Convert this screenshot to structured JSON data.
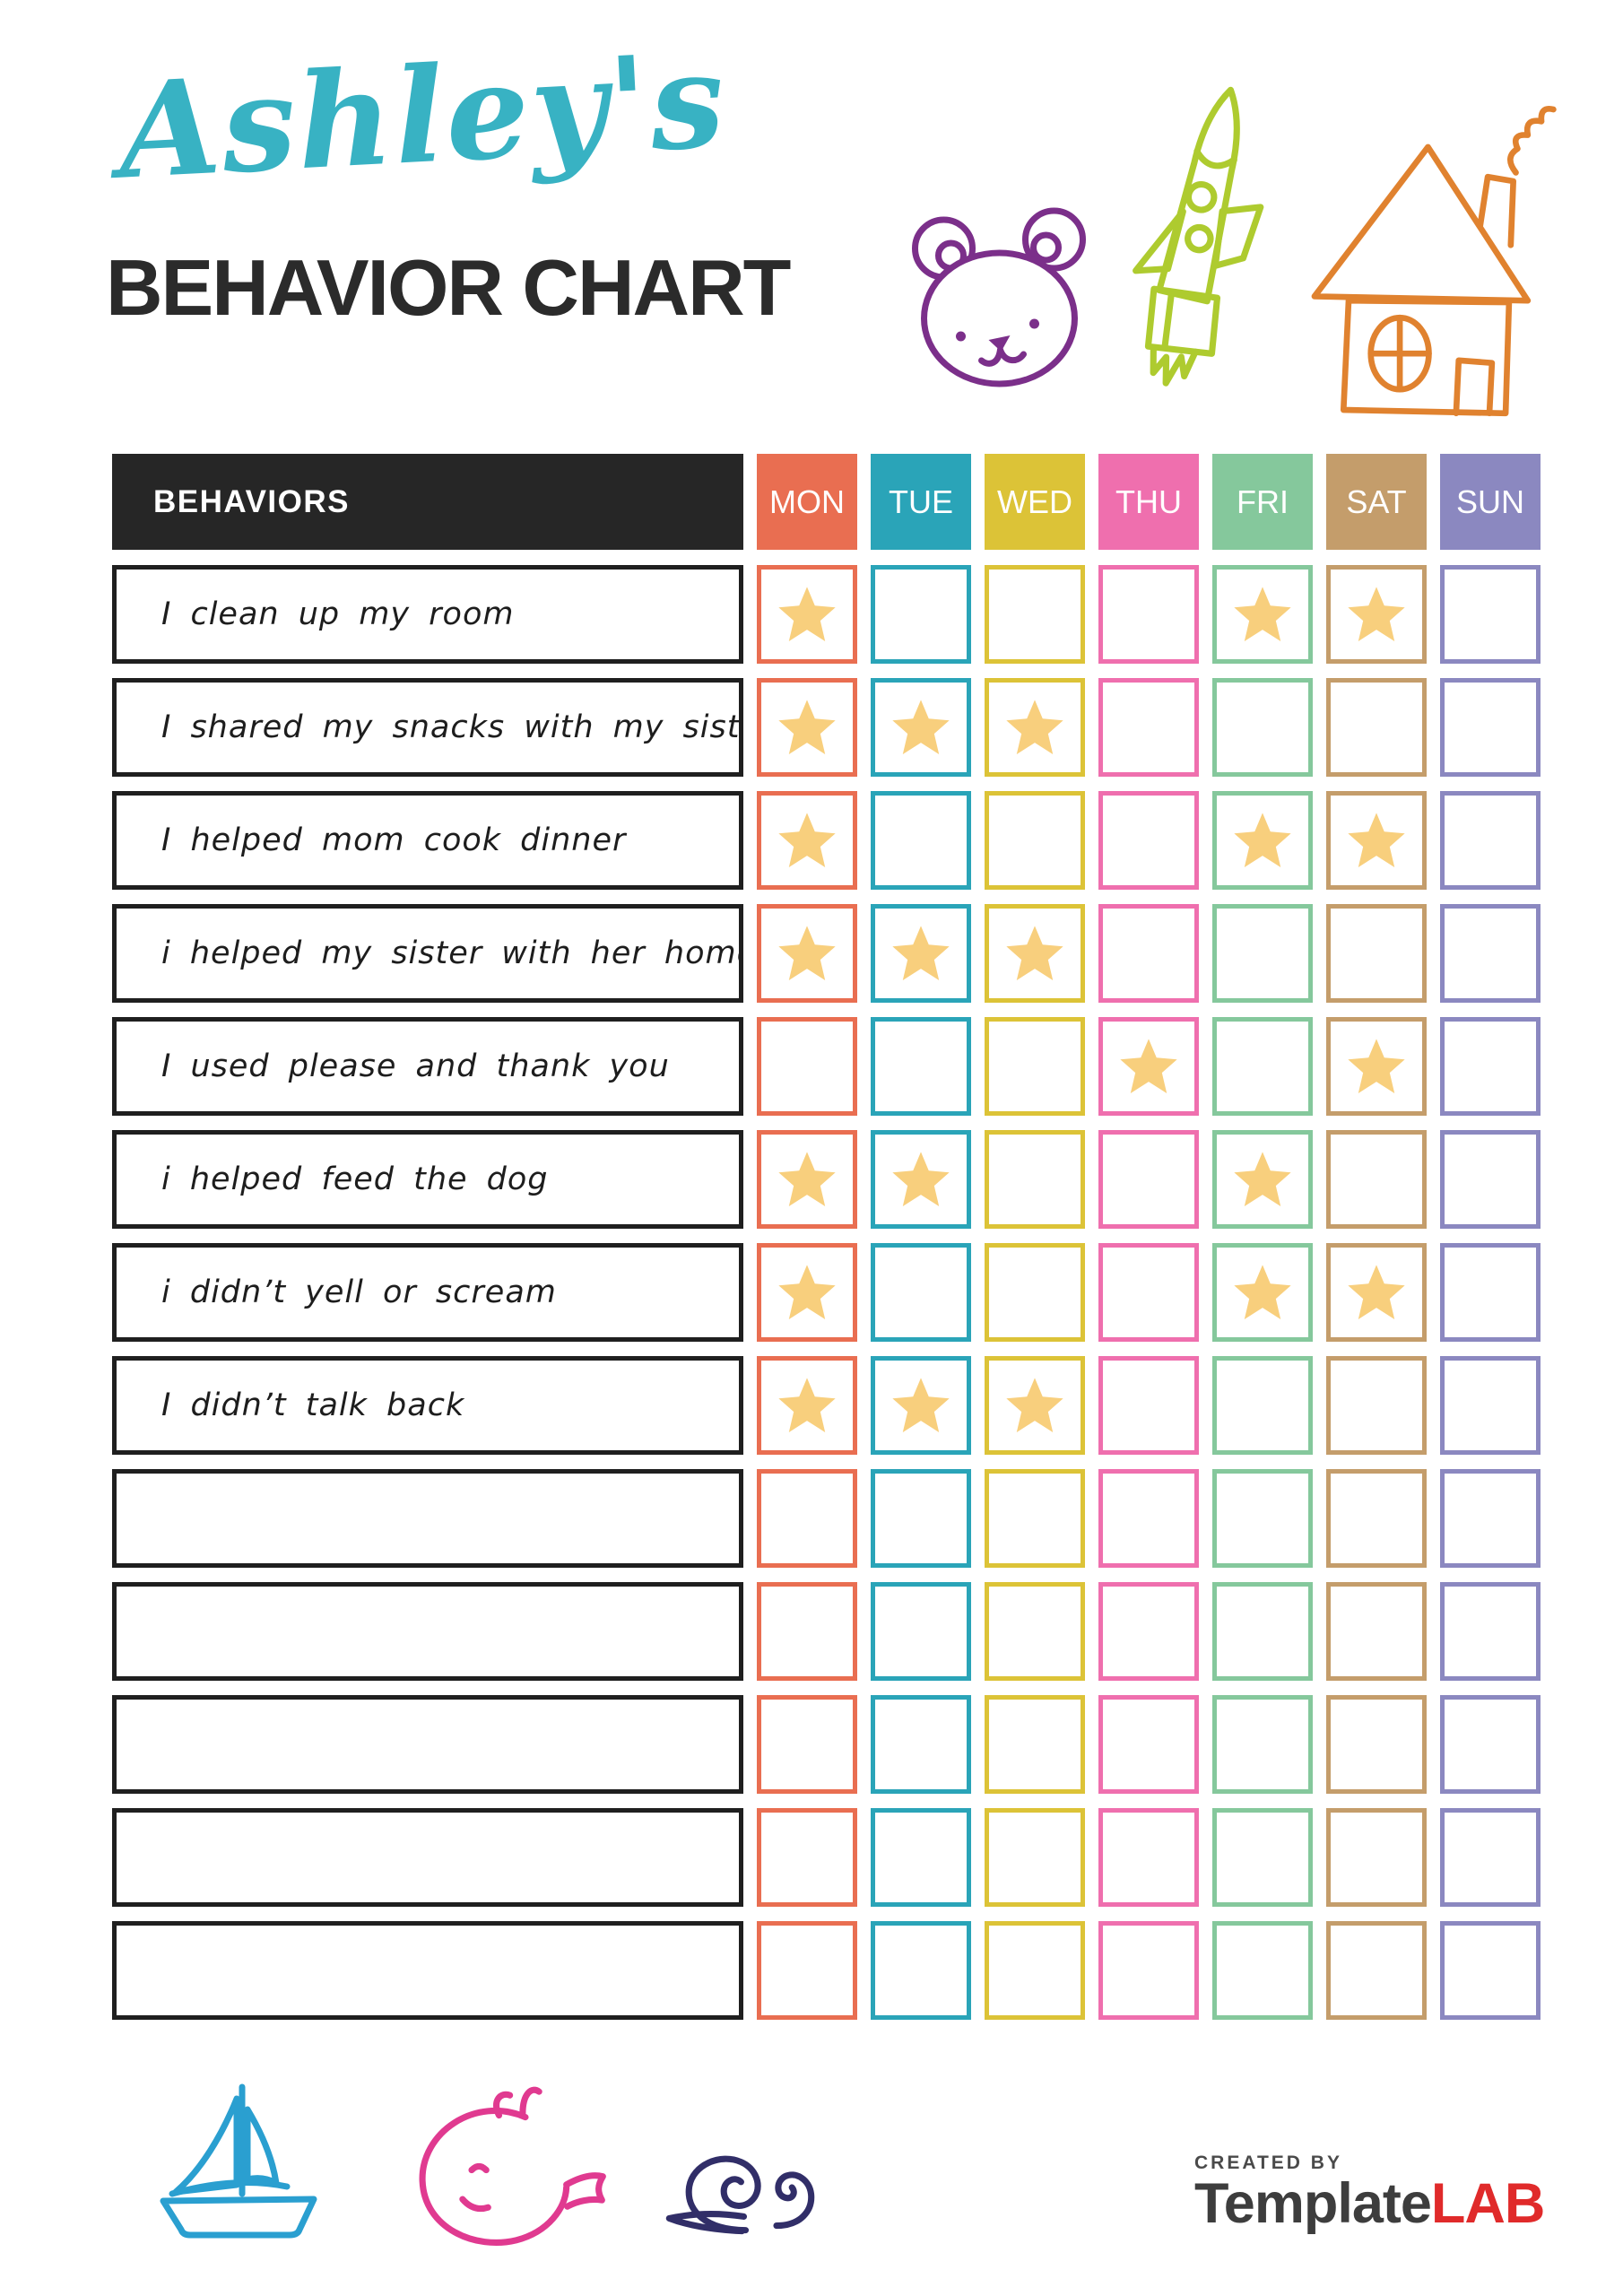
{
  "page": {
    "title_name": "Ashley's",
    "title_subtitle": "BEHAVIOR CHART"
  },
  "table": {
    "behaviors_header": "BEHAVIORS",
    "days": [
      {
        "label": "MON",
        "color": "#e96e51"
      },
      {
        "label": "TUE",
        "color": "#2aa4b8"
      },
      {
        "label": "WED",
        "color": "#dcc337"
      },
      {
        "label": "THU",
        "color": "#ef6fae"
      },
      {
        "label": "FRI",
        "color": "#85c89c"
      },
      {
        "label": "SAT",
        "color": "#c49d6b"
      },
      {
        "label": "SUN",
        "color": "#8b88c0"
      }
    ],
    "rows": [
      {
        "label": "I clean up my room",
        "stars": [
          1,
          0,
          0,
          0,
          1,
          1,
          0
        ]
      },
      {
        "label": "I shared my snacks with my sister",
        "stars": [
          1,
          1,
          1,
          0,
          0,
          0,
          0
        ]
      },
      {
        "label": "I helped mom cook dinner",
        "stars": [
          1,
          0,
          0,
          0,
          1,
          1,
          0
        ]
      },
      {
        "label": "i helped my sister with her homework",
        "stars": [
          1,
          1,
          1,
          0,
          0,
          0,
          0
        ]
      },
      {
        "label": "I used please and thank you",
        "stars": [
          0,
          0,
          0,
          1,
          0,
          1,
          0
        ]
      },
      {
        "label": "i helped feed the dog",
        "stars": [
          1,
          1,
          0,
          0,
          1,
          0,
          0
        ]
      },
      {
        "label": "i didn’t yell or scream",
        "stars": [
          1,
          0,
          0,
          0,
          1,
          1,
          0
        ]
      },
      {
        "label": "I didn’t talk back",
        "stars": [
          1,
          1,
          1,
          0,
          0,
          0,
          0
        ]
      },
      {
        "label": "",
        "stars": [
          0,
          0,
          0,
          0,
          0,
          0,
          0
        ]
      },
      {
        "label": "",
        "stars": [
          0,
          0,
          0,
          0,
          0,
          0,
          0
        ]
      },
      {
        "label": "",
        "stars": [
          0,
          0,
          0,
          0,
          0,
          0,
          0
        ]
      },
      {
        "label": "",
        "stars": [
          0,
          0,
          0,
          0,
          0,
          0,
          0
        ]
      },
      {
        "label": "",
        "stars": [
          0,
          0,
          0,
          0,
          0,
          0,
          0
        ]
      }
    ]
  },
  "footer": {
    "created_by": "CREATED BY",
    "brand_dark": "Template",
    "brand_red": "LAB"
  },
  "icons": {
    "top": [
      "bear-icon",
      "rocket-icon",
      "house-icon"
    ],
    "bottom": [
      "sailboat-icon",
      "whale-icon",
      "snail-icon"
    ],
    "cell_marker": "star-icon"
  },
  "colors": {
    "title_script": "#38b2c3",
    "title_dark": "#2b2b2b",
    "header_bg": "#262626",
    "row_border": "#1f1f1f",
    "star": "#f8cf7d",
    "bear": "#7b2f8a",
    "rocket": "#aecb2f",
    "house": "#e0822f",
    "sailboat": "#2a9fd0",
    "whale": "#e03a90",
    "snail": "#312e68",
    "logo_dark": "#3d3d3d",
    "logo_red": "#e02a2a",
    "created_by": "#4a4a4a"
  }
}
